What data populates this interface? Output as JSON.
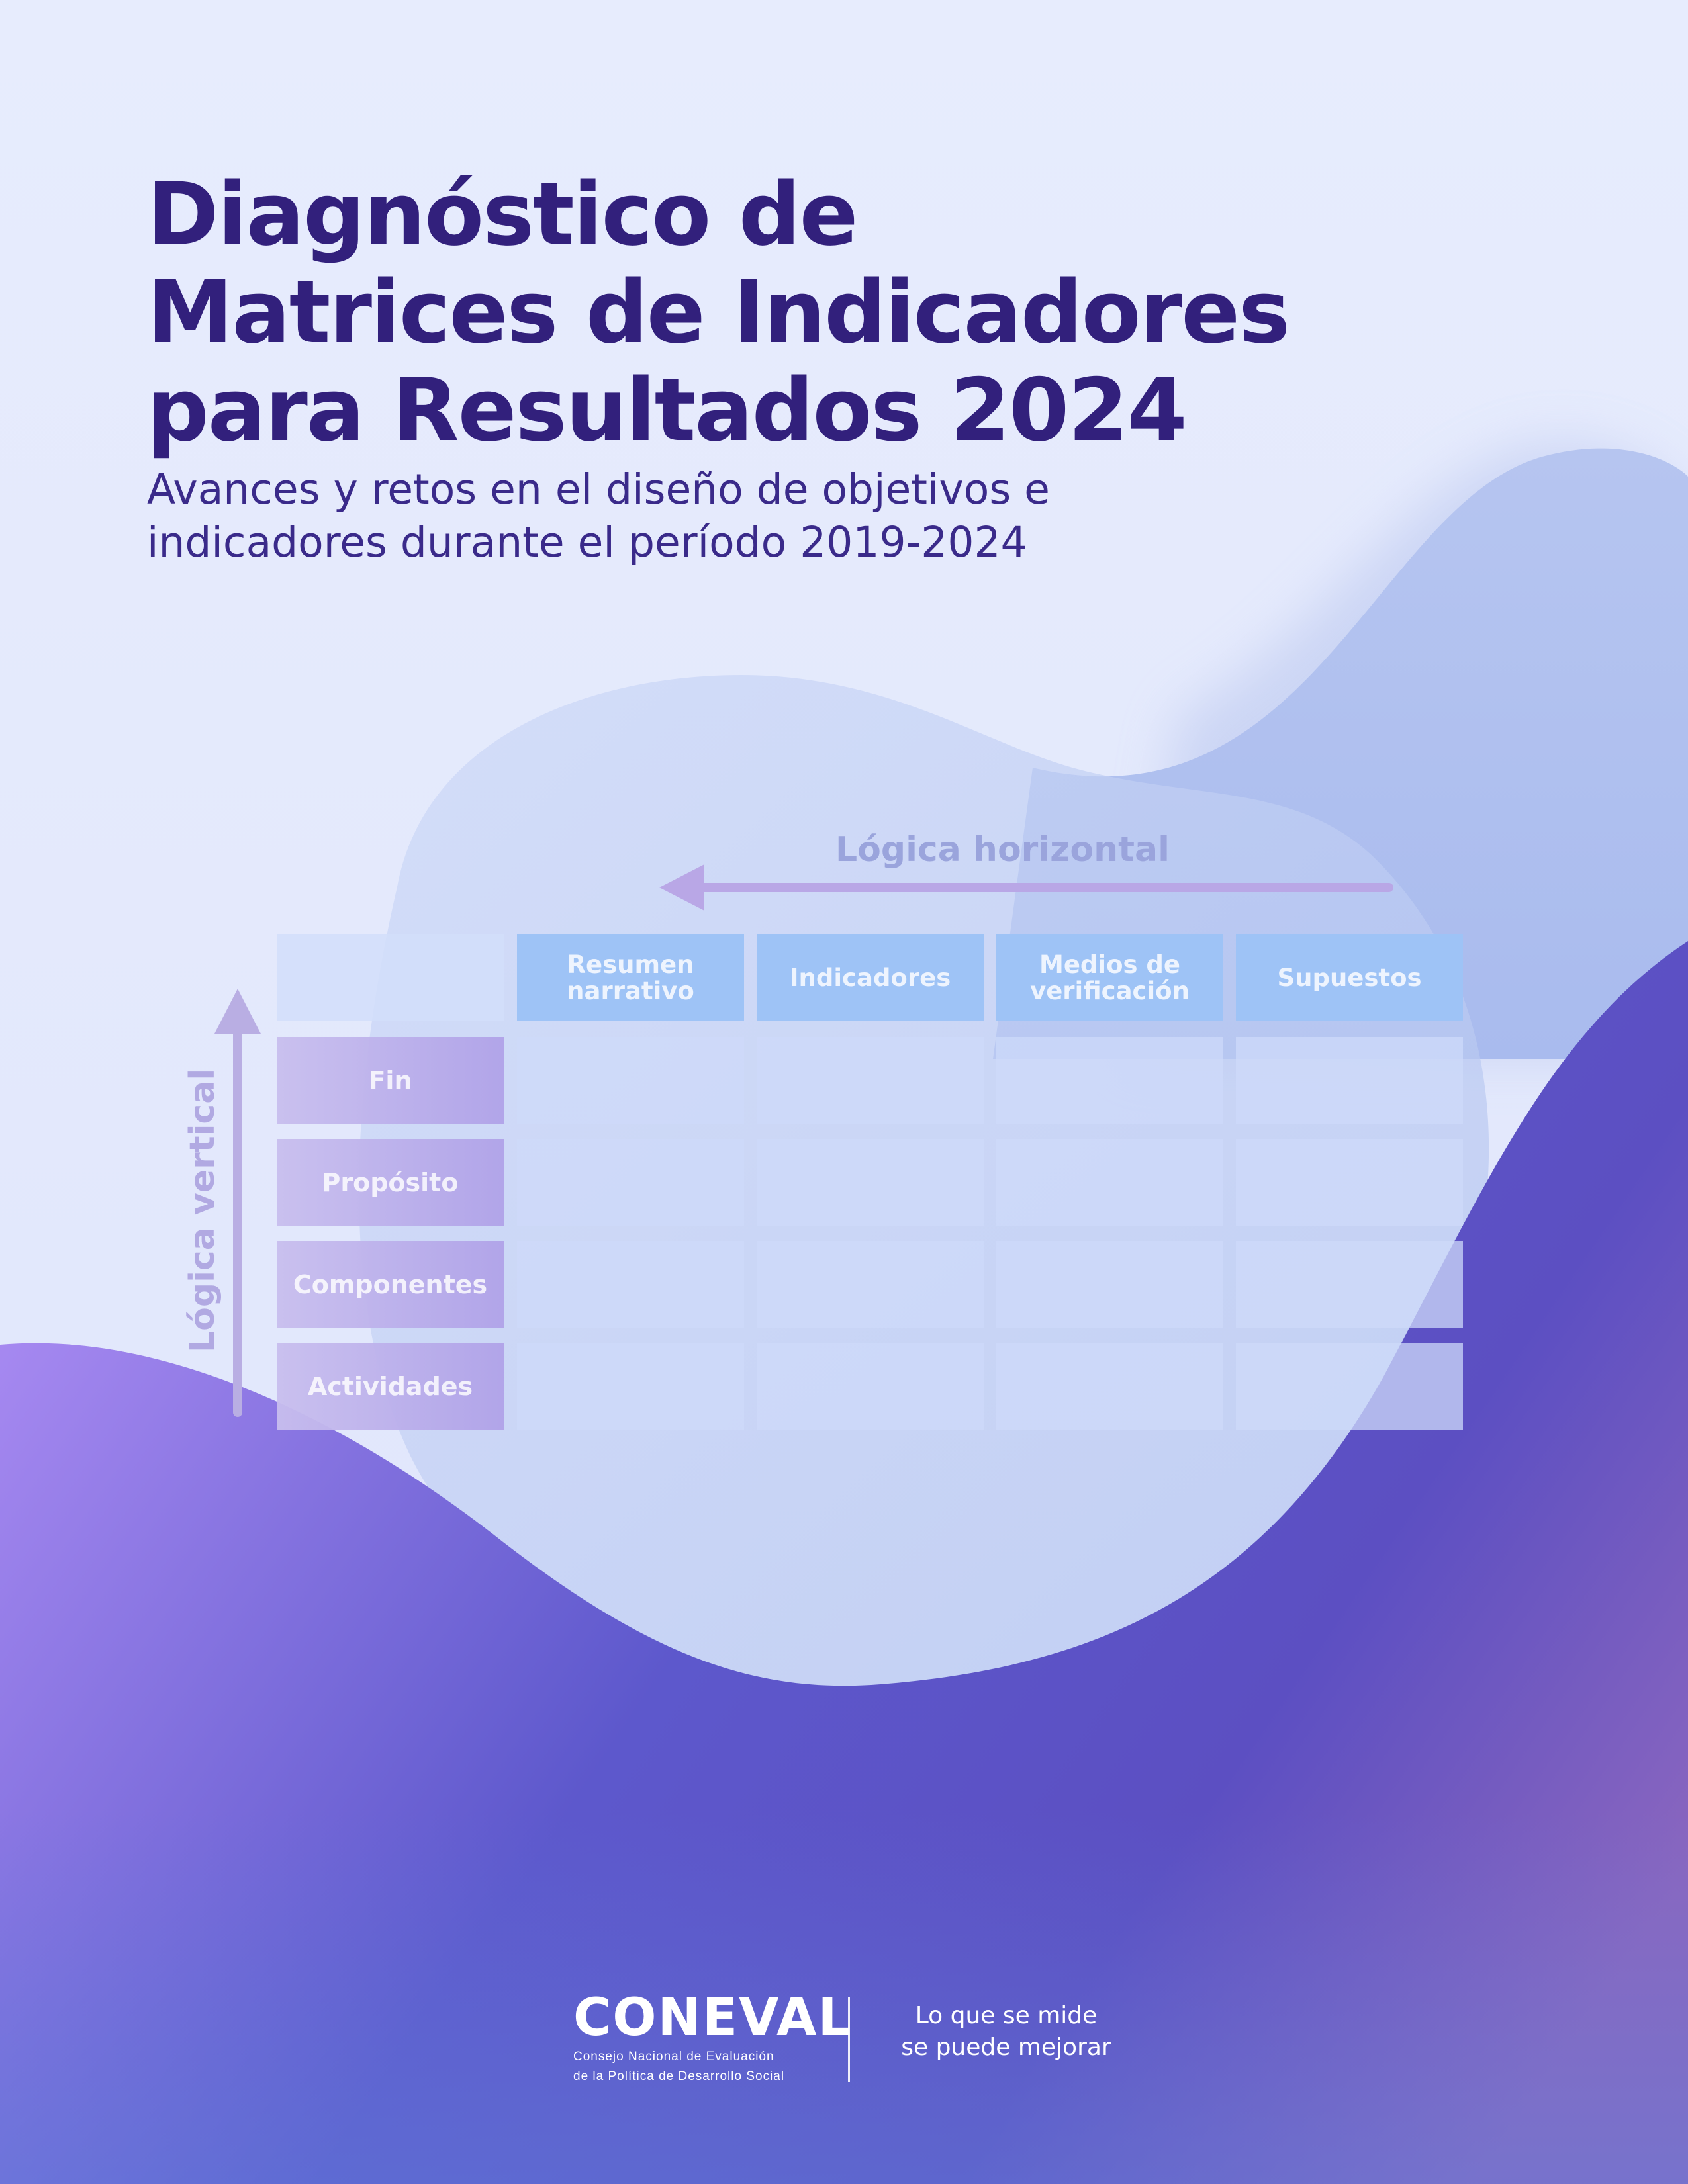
{
  "document": {
    "title_lines": [
      "Diagnóstico de",
      "Matrices de Indicadores",
      "para Resultados 2024"
    ],
    "subtitle_lines": [
      "Avances y retos en el diseño de objetivos e",
      "indicadores durante el período 2019-2024"
    ]
  },
  "matrix": {
    "horizontal_axis_label": "Lógica horizontal",
    "vertical_axis_label": "Lógica vertical",
    "columns": [
      "Resumen narrativo",
      "Indicadores",
      "Medios de verificación",
      "Supuestos"
    ],
    "rows": [
      "Fin",
      "Propósito",
      "Componentes",
      "Actividades"
    ]
  },
  "footer": {
    "logo_text": "CONEVAL",
    "logo_subtitle_lines": [
      "Consejo Nacional de Evaluación",
      "de la Política de Desarrollo Social"
    ],
    "tagline_lines": [
      "Lo que se mide",
      "se puede mejorar"
    ]
  },
  "colors": {
    "page_background": "#e6ebfd",
    "title": "#32207c",
    "column_header": "#9ec3f6",
    "row_header": "#b8aae8",
    "wave_top": "#b5c5f1",
    "wave_bottom_start": "#a98af2",
    "wave_bottom_mid": "#5b50c4",
    "wave_bottom_end": "#8b6cc4"
  }
}
